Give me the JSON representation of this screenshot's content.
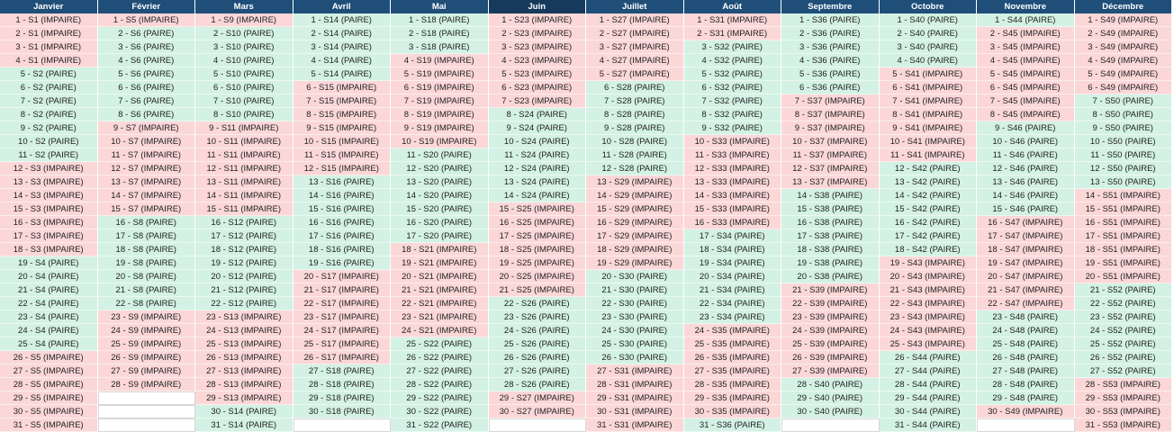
{
  "colors": {
    "header_bg": "#1f4e79",
    "header_text": "#ffffff",
    "odd_week_bg": "#fbd7d8",
    "even_week_bg": "#d3f1e4"
  },
  "tags": {
    "odd": "IMPAIRE",
    "even": "PAIRE"
  },
  "months": [
    {
      "name": "Janvier",
      "weeks": [
        1,
        1,
        1,
        1,
        2,
        2,
        2,
        2,
        2,
        2,
        2,
        3,
        3,
        3,
        3,
        3,
        3,
        3,
        4,
        4,
        4,
        4,
        4,
        4,
        4,
        5,
        5,
        5,
        5,
        5,
        5
      ]
    },
    {
      "name": "Février",
      "weeks": [
        5,
        6,
        6,
        6,
        6,
        6,
        6,
        6,
        7,
        7,
        7,
        7,
        7,
        7,
        7,
        8,
        8,
        8,
        8,
        8,
        8,
        8,
        9,
        9,
        9,
        9,
        9,
        9
      ]
    },
    {
      "name": "Mars",
      "weeks": [
        9,
        10,
        10,
        10,
        10,
        10,
        10,
        10,
        11,
        11,
        11,
        11,
        11,
        11,
        11,
        12,
        12,
        12,
        12,
        12,
        12,
        12,
        13,
        13,
        13,
        13,
        13,
        13,
        13,
        14,
        14
      ]
    },
    {
      "name": "Avril",
      "weeks": [
        14,
        14,
        14,
        14,
        14,
        15,
        15,
        15,
        15,
        15,
        15,
        15,
        16,
        16,
        16,
        16,
        16,
        16,
        16,
        17,
        17,
        17,
        17,
        17,
        17,
        17,
        18,
        18,
        18,
        18
      ]
    },
    {
      "name": "Mai",
      "weeks": [
        18,
        18,
        18,
        19,
        19,
        19,
        19,
        19,
        19,
        19,
        20,
        20,
        20,
        20,
        20,
        20,
        20,
        21,
        21,
        21,
        21,
        21,
        21,
        21,
        22,
        22,
        22,
        22,
        22,
        22,
        22
      ]
    },
    {
      "name": "Juin",
      "weeks": [
        23,
        23,
        23,
        23,
        23,
        23,
        23,
        24,
        24,
        24,
        24,
        24,
        24,
        24,
        25,
        25,
        25,
        25,
        25,
        25,
        25,
        26,
        26,
        26,
        26,
        26,
        26,
        26,
        27,
        27
      ]
    },
    {
      "name": "Juillet",
      "weeks": [
        27,
        27,
        27,
        27,
        27,
        28,
        28,
        28,
        28,
        28,
        28,
        28,
        29,
        29,
        29,
        29,
        29,
        29,
        29,
        30,
        30,
        30,
        30,
        30,
        30,
        30,
        31,
        31,
        31,
        31,
        31
      ]
    },
    {
      "name": "Août",
      "weeks": [
        31,
        31,
        32,
        32,
        32,
        32,
        32,
        32,
        32,
        33,
        33,
        33,
        33,
        33,
        33,
        33,
        34,
        34,
        34,
        34,
        34,
        34,
        34,
        35,
        35,
        35,
        35,
        35,
        35,
        35,
        36
      ]
    },
    {
      "name": "Septembre",
      "weeks": [
        36,
        36,
        36,
        36,
        36,
        36,
        37,
        37,
        37,
        37,
        37,
        37,
        37,
        38,
        38,
        38,
        38,
        38,
        38,
        38,
        39,
        39,
        39,
        39,
        39,
        39,
        39,
        40,
        40,
        40
      ]
    },
    {
      "name": "Octobre",
      "weeks": [
        40,
        40,
        40,
        40,
        41,
        41,
        41,
        41,
        41,
        41,
        41,
        42,
        42,
        42,
        42,
        42,
        42,
        42,
        43,
        43,
        43,
        43,
        43,
        43,
        43,
        44,
        44,
        44,
        44,
        44,
        44
      ]
    },
    {
      "name": "Novembre",
      "weeks": [
        44,
        45,
        45,
        45,
        45,
        45,
        45,
        45,
        46,
        46,
        46,
        46,
        46,
        46,
        46,
        47,
        47,
        47,
        47,
        47,
        47,
        47,
        48,
        48,
        48,
        48,
        48,
        48,
        48,
        49
      ]
    },
    {
      "name": "Décembre",
      "weeks": [
        49,
        49,
        49,
        49,
        49,
        49,
        50,
        50,
        50,
        50,
        50,
        50,
        50,
        51,
        51,
        51,
        51,
        51,
        51,
        51,
        52,
        52,
        52,
        52,
        52,
        52,
        52,
        53,
        53,
        53,
        53
      ]
    }
  ]
}
